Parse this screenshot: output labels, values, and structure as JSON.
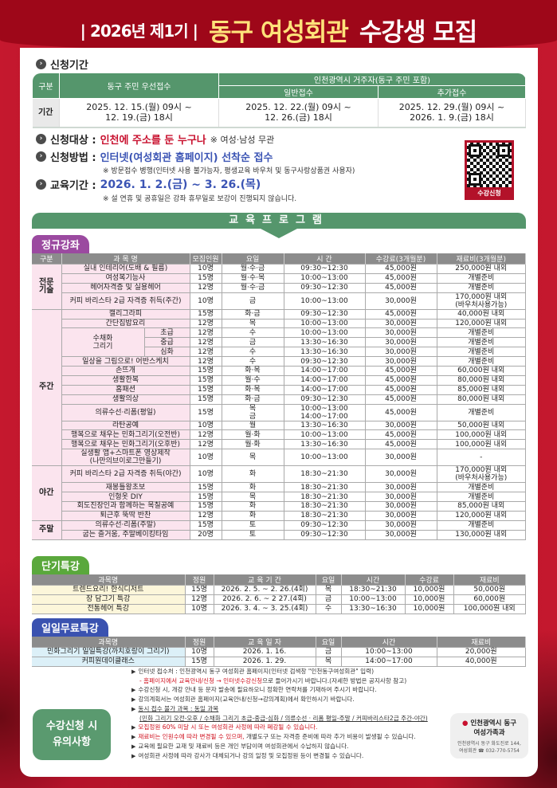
{
  "header": {
    "prefix": "2026년 제1기",
    "title_yellow": "동구 여성회관",
    "title_white": "수강생 모집"
  },
  "period": {
    "heading": "신청기간",
    "col_label": "구분",
    "col_dong": "동구 주민 우선접수",
    "col_incheon": "인천광역시 거주자(동구 주민 포함)",
    "col_general": "일반접수",
    "col_extra": "추가접수",
    "row_label": "기간",
    "dong": "2025. 12. 15.(월) 09시 ~\n12. 19.(금) 18시",
    "general": "2025. 12. 22.(월) 09시 ~\n12. 26.(금) 18시",
    "extra": "2025. 12. 29.(월) 09시 ~\n2026.   1.   9.(금) 18시"
  },
  "info": {
    "target_label": "신청대상 :",
    "target_value": "인천에 주소를 둔 누구나",
    "target_note": "※ 여성·남성 무관",
    "method_label": "신청방법 :",
    "method_value": "인터넷(여성회관 홈페이지) 선착순 접수",
    "method_note": "※ 방문접수 병행(인터넷 사용 불가능자, 평생교육 바우처 및 동구사랑상품권 사용자)",
    "edu_label": "교육기간 :",
    "edu_value": "2026. 1. 2.(금) ~ 3. 26.(목)",
    "edu_note": "※ 설 연휴 및 공휴일은 강좌 휴무일로 보강이 진행되지 않습니다.",
    "qr_label": "수강신청"
  },
  "program_title": "교육프로그램",
  "regular": {
    "title": "정규강좌",
    "color": "#9b4aa0",
    "headers": [
      "구분",
      "과 목 명",
      "모집인원",
      "요일",
      "시 간",
      "수강료(3개월분)",
      "재료비(3개월분)"
    ],
    "groups": [
      {
        "name": "전문\n기술",
        "rows": [
          {
            "course": "실내 인테리어(도배 & 필름)",
            "count": "10명",
            "day": "월·수·금",
            "time": "09:30~12:30",
            "fee": "45,000원",
            "material": "250,000원 내외"
          },
          {
            "course": "여성복기능사",
            "count": "15명",
            "day": "월·수·목",
            "time": "10:00~13:00",
            "fee": "45,000원",
            "material": "개별준비"
          },
          {
            "course": "헤어자격증 및 실용헤어",
            "count": "12명",
            "day": "월·수·금",
            "time": "09:30~12:30",
            "fee": "45,000원",
            "material": "개별준비"
          },
          {
            "course": "커피 바리스타 2급 자격증 취득(주간)",
            "count": "10명",
            "day": "금",
            "time": "10:00~13:00",
            "fee": "30,000원",
            "material": "170,000원 내외\n(바우처사용가능)"
          }
        ]
      },
      {
        "name": "주간",
        "rows": [
          {
            "course": "캘리그라피",
            "count": "15명",
            "day": "화·금",
            "time": "09:30~12:30",
            "fee": "45,000원",
            "material": "40,000원 내외"
          },
          {
            "course": "간단집밥요리",
            "count": "12명",
            "day": "목",
            "time": "10:00~13:00",
            "fee": "30,000원",
            "material": "120,000원 내외"
          },
          {
            "course": "수채화\n그리기",
            "level": "초급",
            "count": "12명",
            "day": "수",
            "time": "10:00~13:00",
            "fee": "30,000원",
            "material": "개별준비"
          },
          {
            "course": "수채화\n그리기",
            "level": "중급",
            "count": "12명",
            "day": "금",
            "time": "13:30~16:30",
            "fee": "30,000원",
            "material": "개별준비"
          },
          {
            "course": "수채화\n그리기",
            "level": "심화",
            "count": "12명",
            "day": "수",
            "time": "13:30~16:30",
            "fee": "30,000원",
            "material": "개별준비"
          },
          {
            "course": "일상을 그림으로! 어반스케치",
            "count": "12명",
            "day": "수",
            "time": "09:30~12:30",
            "fee": "30,000원",
            "material": "개별준비"
          },
          {
            "course": "손뜨개",
            "count": "15명",
            "day": "화·목",
            "time": "14:00~17:00",
            "fee": "45,000원",
            "material": "60,000원 내외"
          },
          {
            "course": "생활한복",
            "count": "15명",
            "day": "월·수",
            "time": "14:00~17:00",
            "fee": "45,000원",
            "material": "80,000원 내외"
          },
          {
            "course": "홈패션",
            "count": "15명",
            "day": "화·목",
            "time": "14:00~17:00",
            "fee": "45,000원",
            "material": "85,000원 내외"
          },
          {
            "course": "생활의상",
            "count": "15명",
            "day": "화·금",
            "time": "09:30~12:30",
            "fee": "45,000원",
            "material": "80,000원 내외"
          },
          {
            "course": "의류수선·리폼(평일)",
            "count": "15명",
            "day": "목\n금",
            "time": "10:00~13:00\n14:00~17:00",
            "fee": "45,000원",
            "material": "개별준비"
          },
          {
            "course": "라탄공예",
            "count": "10명",
            "day": "월",
            "time": "13:30~16:30",
            "fee": "30,000원",
            "material": "50,000원 내외"
          },
          {
            "course": "행복으로 채우는 민화그리기(오전반)",
            "count": "12명",
            "day": "월·화",
            "time": "10:00~13:00",
            "fee": "45,000원",
            "material": "100,000원 내외"
          },
          {
            "course": "행복으로 채우는 민화그리기(오후반)",
            "count": "12명",
            "day": "월·화",
            "time": "13:30~16:30",
            "fee": "45,000원",
            "material": "100,000원 내외"
          },
          {
            "course": "실생활 앱+스마트폰 영상제작\n(나만의브이로그만들기)",
            "count": "10명",
            "day": "목",
            "time": "10:00~13:00",
            "fee": "30,000원",
            "material": "-"
          }
        ]
      },
      {
        "name": "야간",
        "rows": [
          {
            "course": "커피 바리스타 2급 자격증 취득(야간)",
            "count": "10명",
            "day": "화",
            "time": "18:30~21:30",
            "fee": "30,000원",
            "material": "170,000원 내외\n(바우처사용가능)"
          },
          {
            "course": "재봉틀왕초보",
            "count": "15명",
            "day": "화",
            "time": "18:30~21:30",
            "fee": "30,000원",
            "material": "개별준비"
          },
          {
            "course": "인형옷 DIY",
            "count": "15명",
            "day": "목",
            "time": "18:30~21:30",
            "fee": "30,000원",
            "material": "개별준비"
          },
          {
            "course": "회도진장인과 함께하는 목칠공예",
            "count": "15명",
            "day": "화",
            "time": "18:30~21:30",
            "fee": "30,000원",
            "material": "85,000원 내외"
          },
          {
            "course": "퇴근후 뚝딱 반찬",
            "count": "12명",
            "day": "화",
            "time": "18:30~21:30",
            "fee": "30,000원",
            "material": "120,000원 내외"
          }
        ]
      },
      {
        "name": "주말",
        "rows": [
          {
            "course": "의류수선·리폼(주말)",
            "count": "15명",
            "day": "토",
            "time": "09:30~12:30",
            "fee": "30,000원",
            "material": "개별준비"
          },
          {
            "course": "굽는 즐거움, 주말베이킹타임",
            "count": "20명",
            "day": "토",
            "time": "09:30~12:30",
            "fee": "30,000원",
            "material": "130,000원 내외"
          }
        ]
      }
    ]
  },
  "short": {
    "title": "단기특강",
    "color": "#5aa83c",
    "headers": [
      "과목명",
      "정원",
      "교 육 기 간",
      "요일",
      "시간",
      "수강료",
      "재료비"
    ],
    "rows": [
      [
        "트렌드요리! 한식디저트",
        "15명",
        "2026. 2. 5. ~ 2. 26.(4회)",
        "목",
        "18:30~21:30",
        "10,000원",
        "50,000원"
      ],
      [
        "장 담그기 특강",
        "12명",
        "2026. 2. 6. ~ 2 27.(4회)",
        "금",
        "10:00~13:00",
        "10,000원",
        "60,000원"
      ],
      [
        "전통헤어 특강",
        "10명",
        "2026. 3. 4. ~ 3. 25.(4회)",
        "수",
        "13:30~16:30",
        "10,000원",
        "100,000원 내외"
      ]
    ]
  },
  "free": {
    "title": "일일무료특강",
    "color": "#3a52b0",
    "headers": [
      "과목명",
      "정원",
      "교 육 일 자",
      "요일",
      "시간",
      "재료비"
    ],
    "rows": [
      [
        "민화그리기 일일특강(까치호랑이 그리기)",
        "10명",
        "2026. 1. 16.",
        "금",
        "10:00~13:00",
        "20,000원"
      ],
      [
        "커피원데이클래스",
        "15명",
        "2026. 1. 29.",
        "목",
        "14:00~17:00",
        "40,000원"
      ]
    ]
  },
  "caution": {
    "title": "수강신청 시\n유의사항",
    "notes": [
      {
        "bullet": true,
        "segments": [
          {
            "text": "인터넷 접수처 : 인천광역시 동구 여성회관 홈페이지(인터넷 검색창 \"인천동구여성회관\" 입력)"
          }
        ]
      },
      {
        "bullet": false,
        "segments": [
          {
            "text": "- 홈페이지에서 교육안내/신청 → 인터넷수강신청",
            "style": "red"
          },
          {
            "text": "으로 들어가시기 바랍니다.(자세한 방법은 공지사항 참고)"
          }
        ]
      },
      {
        "bullet": true,
        "segments": [
          {
            "text": "수강신청 시, 개강 안내 등 문자 발송에 필요하오니 정확한 연락처를 기재하여 주시기 바랍니다."
          }
        ]
      },
      {
        "bullet": true,
        "segments": [
          {
            "text": "강의계획서는 여성회관 홈페이지(교육안내/신청→강의계획)에서 확인하시기 바랍니다."
          }
        ]
      },
      {
        "bullet": true,
        "segments": [
          {
            "text": "동시 접수 불가 과목 : 동일 과목",
            "style": "underline"
          }
        ]
      },
      {
        "bullet": false,
        "segments": [
          {
            "text": "(민화 그리기 오전-오후 / 수채화 그리기 초급-중급-심화 / 의류수선 · 리폼 평일-주말 / 커피바리스타2급 주간-야간)",
            "style": "underline"
          }
        ]
      },
      {
        "bullet": true,
        "segments": [
          {
            "text": "모집정원 60% 미달 시 또는 여성회관 사정에 따라 폐강될 수 있습니다.",
            "style": "red"
          }
        ]
      },
      {
        "bullet": true,
        "segments": [
          {
            "text": "재료비는 인원수에 따라 변경될 수 있으며,",
            "style": "red"
          },
          {
            "text": " 개별도구 또는 자격증 준비에 따라 추가 비용이 발생될 수 있습니다."
          }
        ]
      },
      {
        "bullet": true,
        "segments": [
          {
            "text": "교육에 필요한 교재 및 재료비 등은 개인 부담이며 여성회관에서 수납하지 않습니다."
          }
        ]
      },
      {
        "bullet": true,
        "segments": [
          {
            "text": "여성회관 사정에 따라 강사가 대체되거나 강의 일정 및 모집정원 등이 변경될 수 있습니다."
          }
        ]
      }
    ]
  },
  "org": {
    "name": "인천광역시 동구",
    "dept": "여성가족과",
    "address": "인천광역시 동구 화도진로 144,",
    "place": "여성회관",
    "phone": "032-770-5754"
  }
}
